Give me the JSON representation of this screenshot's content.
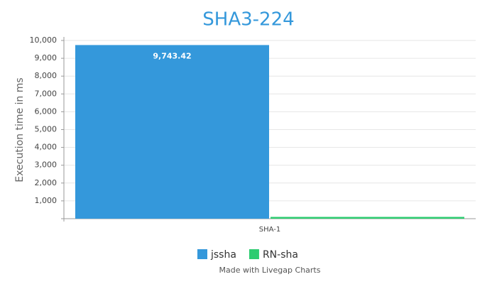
{
  "chart_data": {
    "type": "bar",
    "title": "SHA3-224",
    "y_label": "Execution time in ms",
    "categories": [
      "SHA-1"
    ],
    "series": [
      {
        "name": "jssha",
        "color": "#3498db",
        "values": [
          9743.42
        ],
        "value_labels": [
          "9,743.42"
        ]
      },
      {
        "name": "RN-sha",
        "color": "#2ecc71",
        "values": [
          100
        ]
      }
    ],
    "ylim": [
      0,
      10000
    ],
    "yticks": [
      {
        "value": 1000,
        "label": "1,000"
      },
      {
        "value": 2000,
        "label": "2,000"
      },
      {
        "value": 3000,
        "label": "3,000"
      },
      {
        "value": 4000,
        "label": "4,000"
      },
      {
        "value": 5000,
        "label": "5,000"
      },
      {
        "value": 6000,
        "label": "6,000"
      },
      {
        "value": 7000,
        "label": "7,000"
      },
      {
        "value": 8000,
        "label": "8,000"
      },
      {
        "value": 9000,
        "label": "9,000"
      },
      {
        "value": 10000,
        "label": "10,000"
      }
    ],
    "grid": true,
    "credit": "Made with Livegap Charts"
  }
}
